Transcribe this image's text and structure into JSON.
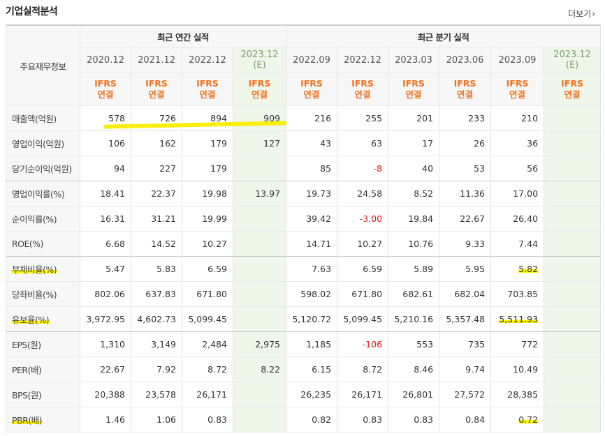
{
  "page": {
    "title": "기업실적분석",
    "more_label": "더보기"
  },
  "table": {
    "corner_label": "주요재무정보",
    "groups": [
      "최근 연간 실적",
      "최근 분기 실적"
    ],
    "periods": [
      {
        "line1": "2020.12",
        "line2": ""
      },
      {
        "line1": "2021.12",
        "line2": ""
      },
      {
        "line1": "2022.12",
        "line2": ""
      },
      {
        "line1": "2023.12",
        "line2": "(E)"
      },
      {
        "line1": "2022.09",
        "line2": ""
      },
      {
        "line1": "2022.12",
        "line2": ""
      },
      {
        "line1": "2023.03",
        "line2": ""
      },
      {
        "line1": "2023.06",
        "line2": ""
      },
      {
        "line1": "2023.09",
        "line2": ""
      },
      {
        "line1": "2023.12",
        "line2": "(E)"
      }
    ],
    "ifrs": [
      "IFRS",
      "연결"
    ],
    "rows": [
      {
        "label": "매출액(억원)",
        "values": [
          "578",
          "726",
          "894",
          "909",
          "216",
          "255",
          "201",
          "233",
          "210",
          ""
        ]
      },
      {
        "label": "영업이익(억원)",
        "values": [
          "106",
          "162",
          "179",
          "127",
          "43",
          "63",
          "17",
          "26",
          "36",
          ""
        ]
      },
      {
        "label": "당기순이익(억원)",
        "values": [
          "94",
          "227",
          "179",
          "",
          "85",
          "-8",
          "40",
          "53",
          "56",
          ""
        ]
      },
      {
        "label": "영업이익률(%)",
        "values": [
          "18.41",
          "22.37",
          "19.98",
          "13.97",
          "19.73",
          "24.58",
          "8.52",
          "11.36",
          "17.00",
          ""
        ]
      },
      {
        "label": "순이익률(%)",
        "values": [
          "16.31",
          "31.21",
          "19.99",
          "",
          "39.42",
          "-3.00",
          "19.84",
          "22.67",
          "26.40",
          ""
        ]
      },
      {
        "label": "ROE(%)",
        "values": [
          "6.68",
          "14.52",
          "10.27",
          "",
          "14.71",
          "10.27",
          "10.76",
          "9.33",
          "7.44",
          ""
        ]
      },
      {
        "label": "부채비율(%)",
        "values": [
          "5.47",
          "5.83",
          "6.59",
          "",
          "7.63",
          "6.59",
          "5.89",
          "5.95",
          "5.82",
          ""
        ]
      },
      {
        "label": "당좌비율(%)",
        "values": [
          "802.06",
          "637.83",
          "671.80",
          "",
          "598.02",
          "671.80",
          "682.61",
          "682.04",
          "703.85",
          ""
        ]
      },
      {
        "label": "유보율(%)",
        "values": [
          "3,972.95",
          "4,602.73",
          "5,099.45",
          "",
          "5,120.72",
          "5,099.45",
          "5,210.16",
          "5,357.48",
          "5,511.93",
          ""
        ]
      },
      {
        "label": "EPS(원)",
        "values": [
          "1,310",
          "3,149",
          "2,484",
          "2,975",
          "1,185",
          "-106",
          "553",
          "735",
          "772",
          ""
        ]
      },
      {
        "label": "PER(배)",
        "values": [
          "22.67",
          "7.92",
          "8.72",
          "8.22",
          "6.15",
          "8.72",
          "8.46",
          "9.74",
          "10.49",
          ""
        ]
      },
      {
        "label": "BPS(원)",
        "values": [
          "20,388",
          "23,578",
          "26,171",
          "",
          "26,235",
          "26,171",
          "26,801",
          "27,572",
          "28,385",
          ""
        ]
      },
      {
        "label": "PBR(배)",
        "values": [
          "1.46",
          "1.06",
          "0.83",
          "",
          "0.82",
          "0.83",
          "0.83",
          "0.84",
          "0.72",
          ""
        ]
      }
    ]
  },
  "colors": {
    "highlight": "#fff500",
    "ifrs": "#f37321",
    "estimate_bg": "#eef7ea",
    "negative": "#e01b1b"
  }
}
